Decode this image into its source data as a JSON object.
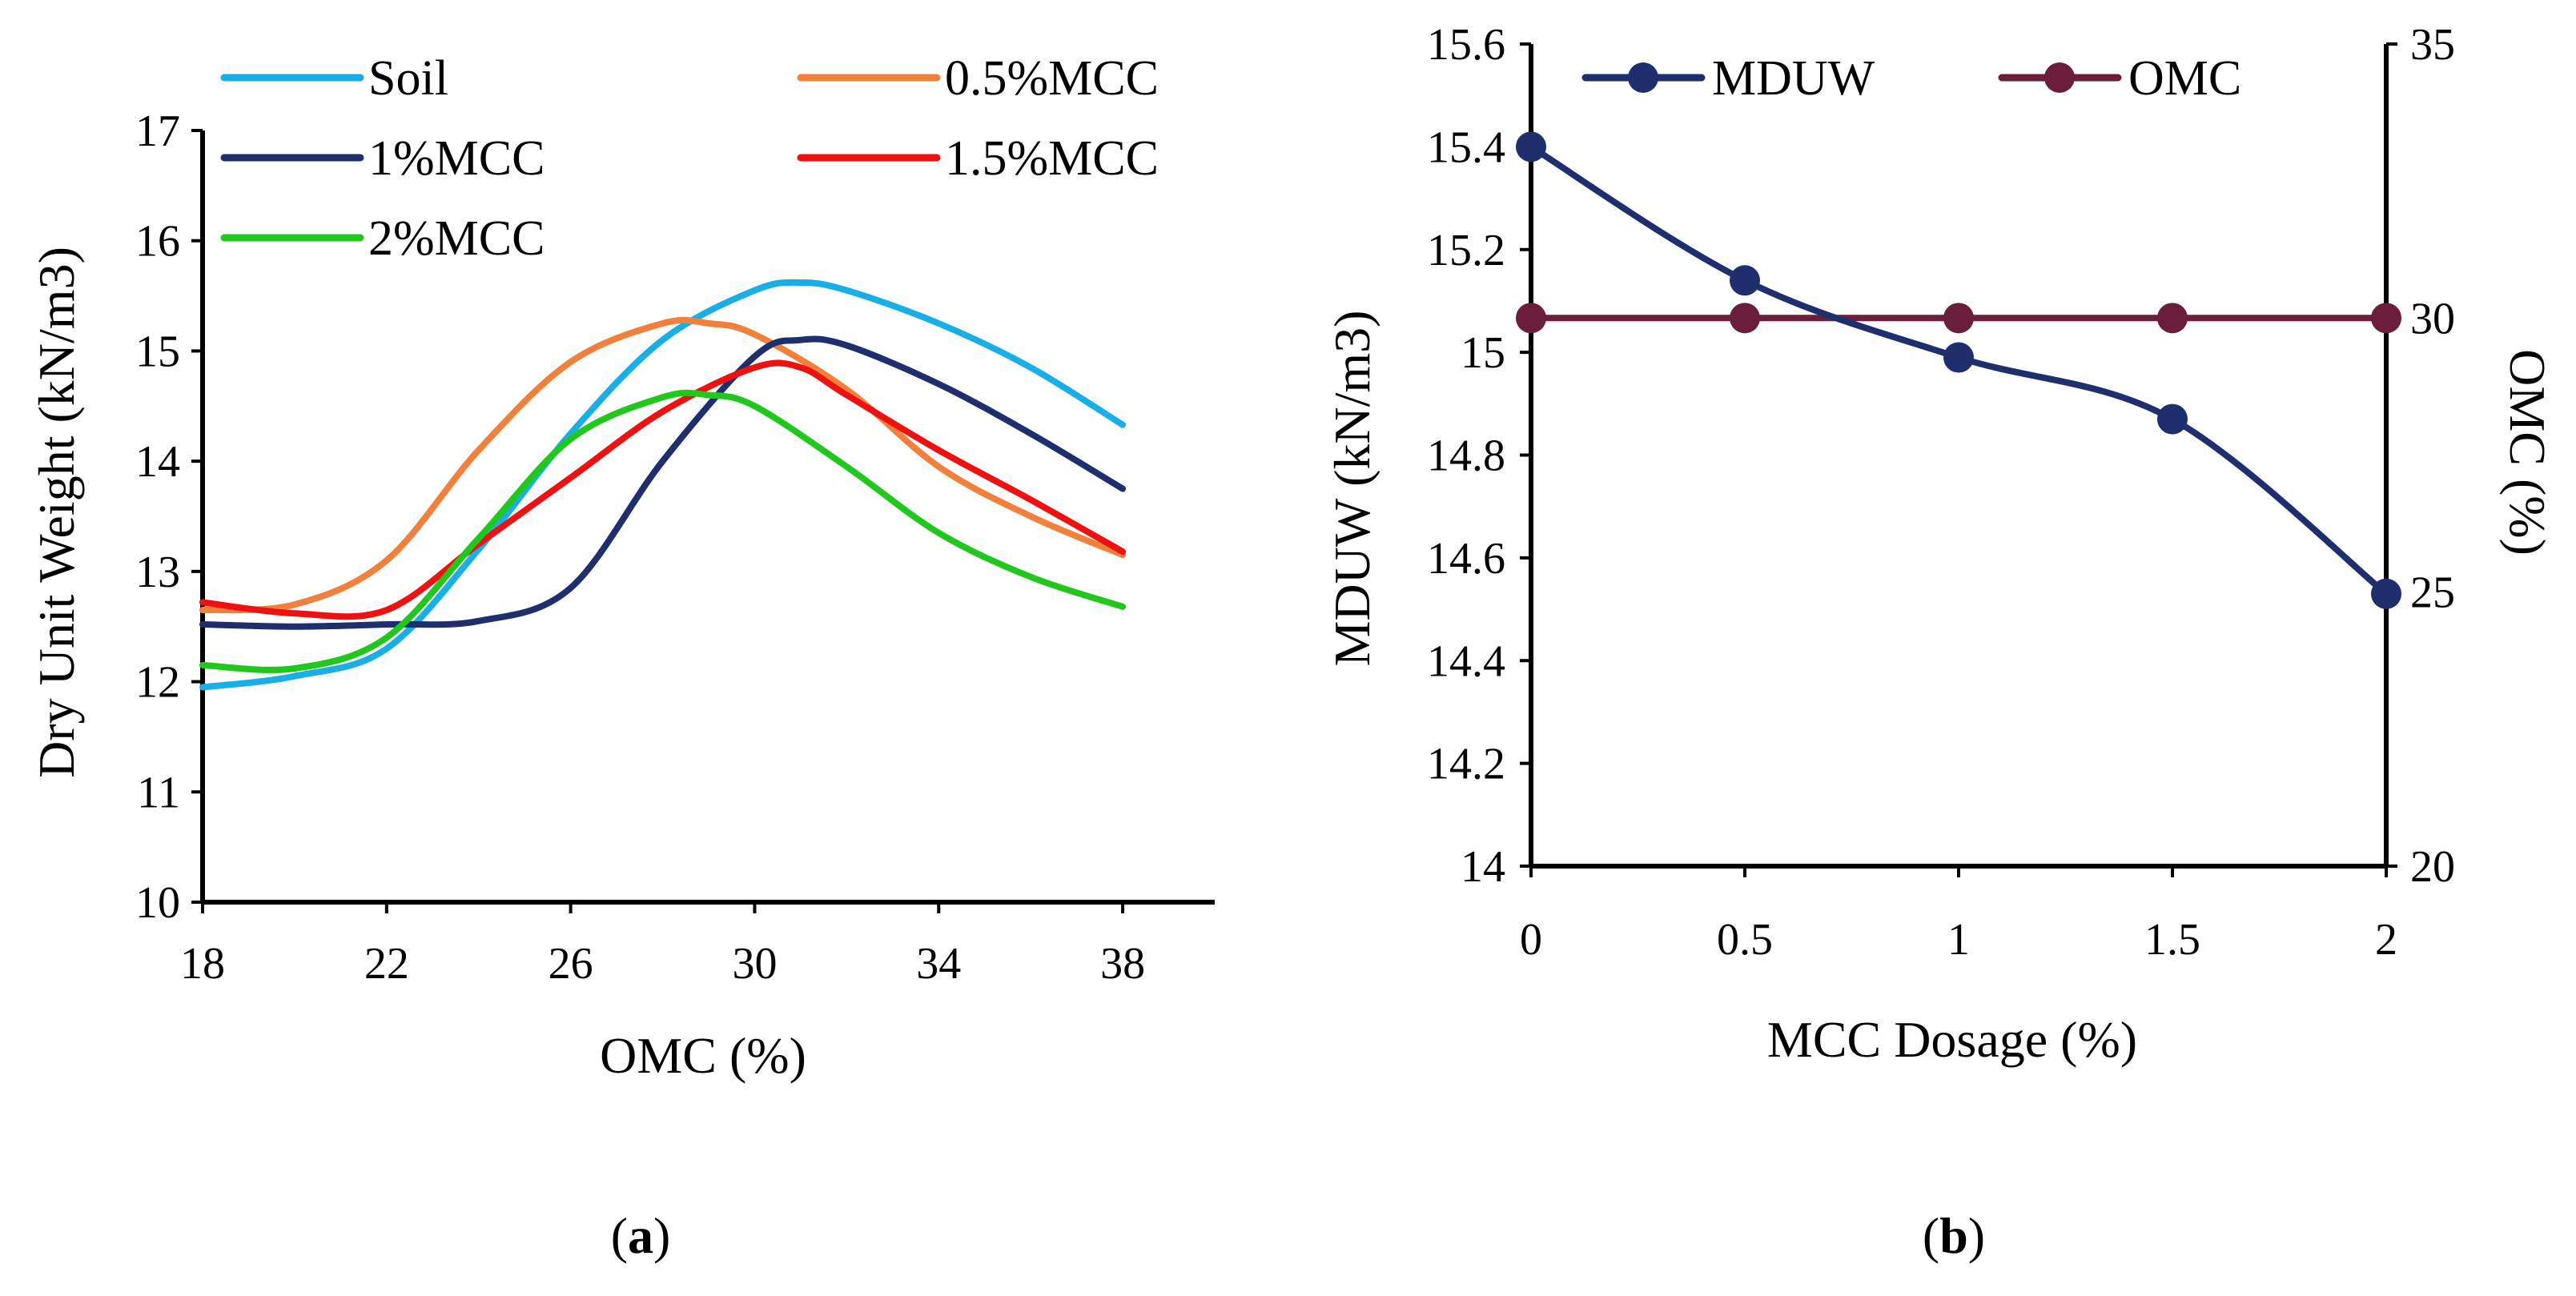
{
  "chart_data": [
    {
      "type": "line",
      "panel_label": {
        "open": "(",
        "letter": "a",
        "close": ")"
      },
      "xlabel": "OMC (%)",
      "ylabel": "Dry Unit Weight (kN/m3)",
      "xlim": [
        18,
        40
      ],
      "ylim": [
        10,
        17
      ],
      "xticks": [
        18,
        22,
        26,
        30,
        34,
        38
      ],
      "yticks": [
        10,
        11,
        12,
        13,
        14,
        15,
        16,
        17
      ],
      "legend_position": "top",
      "series": [
        {
          "name": "Soil",
          "color": "#1aaee6",
          "points": [
            [
              18,
              11.95
            ],
            [
              20,
              12.05
            ],
            [
              22,
              12.3
            ],
            [
              24,
              13.2
            ],
            [
              26,
              14.25
            ],
            [
              28,
              15.1
            ],
            [
              30,
              15.55
            ],
            [
              31,
              15.62
            ],
            [
              32,
              15.55
            ],
            [
              34,
              15.25
            ],
            [
              36,
              14.85
            ],
            [
              38,
              14.33
            ]
          ]
        },
        {
          "name": "0.5%MCC",
          "color": "#f0803c",
          "points": [
            [
              18,
              12.65
            ],
            [
              20,
              12.7
            ],
            [
              22,
              13.1
            ],
            [
              24,
              14.1
            ],
            [
              26,
              14.9
            ],
            [
              28,
              15.25
            ],
            [
              29,
              15.25
            ],
            [
              30,
              15.15
            ],
            [
              32,
              14.65
            ],
            [
              34,
              13.95
            ],
            [
              36,
              13.5
            ],
            [
              38,
              13.15
            ]
          ]
        },
        {
          "name": "1%MCC",
          "color": "#1f2f6e",
          "points": [
            [
              18,
              12.52
            ],
            [
              20,
              12.5
            ],
            [
              22,
              12.52
            ],
            [
              24,
              12.55
            ],
            [
              26,
              12.85
            ],
            [
              28,
              14.0
            ],
            [
              30,
              14.95
            ],
            [
              31,
              15.1
            ],
            [
              32,
              15.05
            ],
            [
              34,
              14.7
            ],
            [
              36,
              14.25
            ],
            [
              38,
              13.75
            ]
          ]
        },
        {
          "name": "1.5%MCC",
          "color": "#ee1111",
          "points": [
            [
              18,
              12.72
            ],
            [
              20,
              12.62
            ],
            [
              22,
              12.65
            ],
            [
              24,
              13.25
            ],
            [
              26,
              13.85
            ],
            [
              28,
              14.45
            ],
            [
              30,
              14.85
            ],
            [
              31,
              14.85
            ],
            [
              32,
              14.6
            ],
            [
              34,
              14.1
            ],
            [
              36,
              13.65
            ],
            [
              38,
              13.18
            ]
          ]
        },
        {
          "name": "2%MCC",
          "color": "#22c71e",
          "points": [
            [
              18,
              12.15
            ],
            [
              20,
              12.12
            ],
            [
              22,
              12.4
            ],
            [
              24,
              13.3
            ],
            [
              26,
              14.2
            ],
            [
              28,
              14.58
            ],
            [
              29,
              14.6
            ],
            [
              30,
              14.5
            ],
            [
              32,
              13.95
            ],
            [
              34,
              13.35
            ],
            [
              36,
              12.95
            ],
            [
              38,
              12.68
            ]
          ]
        }
      ]
    },
    {
      "type": "line",
      "panel_label": {
        "open": "(",
        "letter": "b",
        "close": ")"
      },
      "xlabel": "MCC Dosage (%)",
      "ylabel": "MDUW (kN/m3)",
      "y2label": "OMC (%)",
      "xlim": [
        0,
        2
      ],
      "ylim": [
        14,
        15.6
      ],
      "y2lim": [
        20,
        35
      ],
      "xticks": [
        0,
        0.5,
        1,
        1.5,
        2
      ],
      "yticks": [
        14,
        14.2,
        14.4,
        14.6,
        14.8,
        15,
        15.2,
        15.4,
        15.6
      ],
      "y2ticks": [
        20,
        25,
        30,
        35
      ],
      "legend_position": "top",
      "series": [
        {
          "name": "MDUW",
          "color": "#1f2f6e",
          "axis": "left",
          "x": [
            0,
            0.5,
            1,
            1.5,
            2
          ],
          "values": [
            15.4,
            15.14,
            14.99,
            14.87,
            14.53
          ]
        },
        {
          "name": "OMC",
          "color": "#6b1d3c",
          "axis": "right",
          "x": [
            0,
            0.5,
            1,
            1.5,
            2
          ],
          "values": [
            30,
            30,
            30,
            30,
            30
          ]
        }
      ]
    }
  ]
}
